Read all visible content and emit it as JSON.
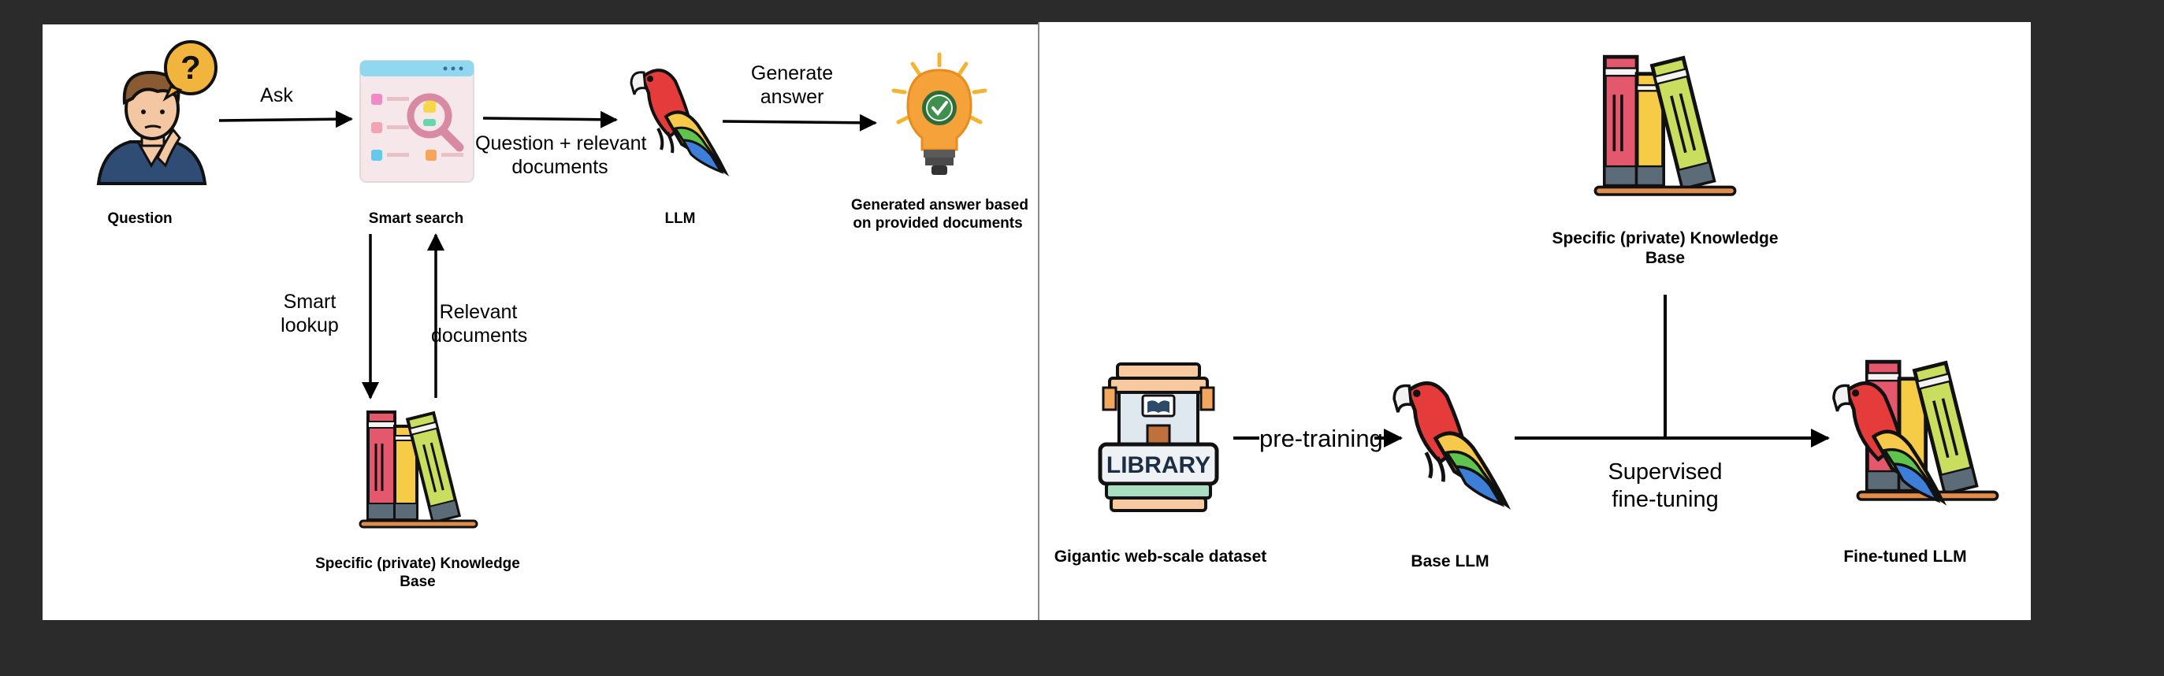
{
  "rag": {
    "question_label": "Question",
    "ask_label": "Ask",
    "smart_search_label": "Smart search",
    "question_docs_line1": "Question + relevant",
    "question_docs_line2": "documents",
    "llm_label": "LLM",
    "generate_line1": "Generate",
    "generate_line2": "answer",
    "generated_line1": "Generated answer based",
    "generated_line2": "on provided documents",
    "smart_lookup_line1": "Smart",
    "smart_lookup_line2": "lookup",
    "relevant_line1": "Relevant",
    "relevant_line2": "documents",
    "kb_line1": "Specific (private) Knowledge",
    "kb_line2": "Base"
  },
  "finetune": {
    "kb_line1": "Specific (private) Knowledge",
    "kb_line2": "Base",
    "dataset_label": "Gigantic web-scale dataset",
    "library_sign": "LIBRARY",
    "pretraining_label": "pre-training",
    "base_llm_label": "Base LLM",
    "supervised_line1": "Supervised",
    "supervised_line2": "fine-tuning",
    "finetuned_label": "Fine-tuned LLM"
  },
  "icons": {
    "question": "person-thinking-icon",
    "search": "smart-search-icon",
    "llm": "parrot-icon",
    "answer": "lightbulb-check-icon",
    "knowledge": "books-icon",
    "dataset": "library-icon"
  }
}
